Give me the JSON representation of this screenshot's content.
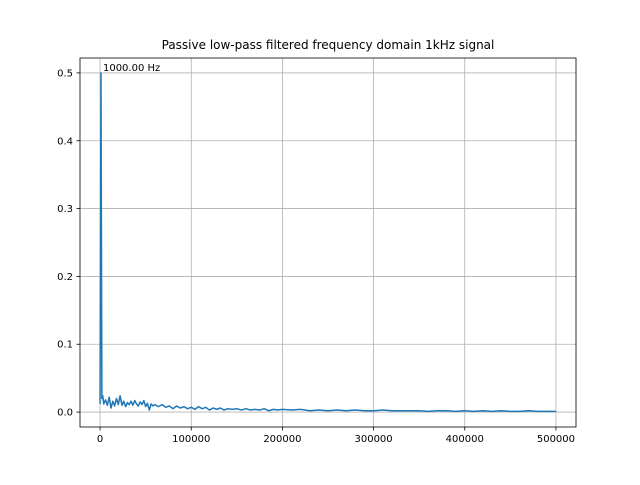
{
  "chart_data": {
    "type": "line",
    "title": "Passive low-pass filtered frequency domain 1kHz signal",
    "xlabel": "",
    "ylabel": "",
    "xlim": [
      -22000,
      522000
    ],
    "ylim": [
      -0.022,
      0.522
    ],
    "x_ticks": [
      0,
      100000,
      200000,
      300000,
      400000,
      500000
    ],
    "x_tick_labels": [
      "0",
      "100000",
      "200000",
      "300000",
      "400000",
      "500000"
    ],
    "y_ticks": [
      0.0,
      0.1,
      0.2,
      0.3,
      0.4,
      0.5
    ],
    "y_tick_labels": [
      "0.0",
      "0.1",
      "0.2",
      "0.3",
      "0.4",
      "0.5"
    ],
    "grid": true,
    "line_color": "#1f77b4",
    "annotation": {
      "text": "1000.00 Hz",
      "x": 1000,
      "y": 0.5
    },
    "series": [
      {
        "points": [
          [
            0,
            0.012
          ],
          [
            1000,
            0.5
          ],
          [
            2000,
            0.02
          ],
          [
            3000,
            0.024
          ],
          [
            4000,
            0.012
          ],
          [
            6000,
            0.018
          ],
          [
            8000,
            0.01
          ],
          [
            10000,
            0.022
          ],
          [
            12000,
            0.006
          ],
          [
            14000,
            0.016
          ],
          [
            16000,
            0.009
          ],
          [
            18000,
            0.02
          ],
          [
            20000,
            0.011
          ],
          [
            22000,
            0.024
          ],
          [
            24000,
            0.01
          ],
          [
            26000,
            0.016
          ],
          [
            28000,
            0.008
          ],
          [
            30000,
            0.014
          ],
          [
            32000,
            0.011
          ],
          [
            34000,
            0.016
          ],
          [
            36000,
            0.01
          ],
          [
            38000,
            0.017
          ],
          [
            40000,
            0.012
          ],
          [
            42000,
            0.009
          ],
          [
            44000,
            0.015
          ],
          [
            46000,
            0.011
          ],
          [
            48000,
            0.017
          ],
          [
            50000,
            0.008
          ],
          [
            52000,
            0.013
          ],
          [
            54000,
            0.003
          ],
          [
            56000,
            0.012
          ],
          [
            58000,
            0.009
          ],
          [
            60000,
            0.011
          ],
          [
            64000,
            0.008
          ],
          [
            68000,
            0.011
          ],
          [
            72000,
            0.007
          ],
          [
            76000,
            0.009
          ],
          [
            80000,
            0.005
          ],
          [
            84000,
            0.009
          ],
          [
            88000,
            0.006
          ],
          [
            92000,
            0.008
          ],
          [
            96000,
            0.005
          ],
          [
            100000,
            0.007
          ],
          [
            104000,
            0.004
          ],
          [
            108000,
            0.008
          ],
          [
            112000,
            0.005
          ],
          [
            116000,
            0.007
          ],
          [
            120000,
            0.003
          ],
          [
            124000,
            0.006
          ],
          [
            128000,
            0.004
          ],
          [
            132000,
            0.006
          ],
          [
            136000,
            0.003
          ],
          [
            140000,
            0.005
          ],
          [
            145000,
            0.004
          ],
          [
            150000,
            0.005
          ],
          [
            155000,
            0.003
          ],
          [
            160000,
            0.005
          ],
          [
            165000,
            0.003
          ],
          [
            170000,
            0.004
          ],
          [
            175000,
            0.003
          ],
          [
            180000,
            0.005
          ],
          [
            185000,
            0.002
          ],
          [
            190000,
            0.004
          ],
          [
            195000,
            0.003
          ],
          [
            200000,
            0.004
          ],
          [
            210000,
            0.003
          ],
          [
            220000,
            0.004
          ],
          [
            230000,
            0.002
          ],
          [
            240000,
            0.003
          ],
          [
            250000,
            0.002
          ],
          [
            260000,
            0.003
          ],
          [
            270000,
            0.002
          ],
          [
            280000,
            0.003
          ],
          [
            290000,
            0.002
          ],
          [
            300000,
            0.002
          ],
          [
            310000,
            0.003
          ],
          [
            320000,
            0.002
          ],
          [
            330000,
            0.002
          ],
          [
            340000,
            0.002
          ],
          [
            350000,
            0.002
          ],
          [
            360000,
            0.001
          ],
          [
            370000,
            0.002
          ],
          [
            380000,
            0.002
          ],
          [
            390000,
            0.001
          ],
          [
            400000,
            0.002
          ],
          [
            410000,
            0.001
          ],
          [
            420000,
            0.002
          ],
          [
            430000,
            0.001
          ],
          [
            440000,
            0.002
          ],
          [
            450000,
            0.001
          ],
          [
            460000,
            0.001
          ],
          [
            470000,
            0.002
          ],
          [
            480000,
            0.001
          ],
          [
            490000,
            0.001
          ],
          [
            500000,
            0.001
          ]
        ]
      }
    ]
  }
}
